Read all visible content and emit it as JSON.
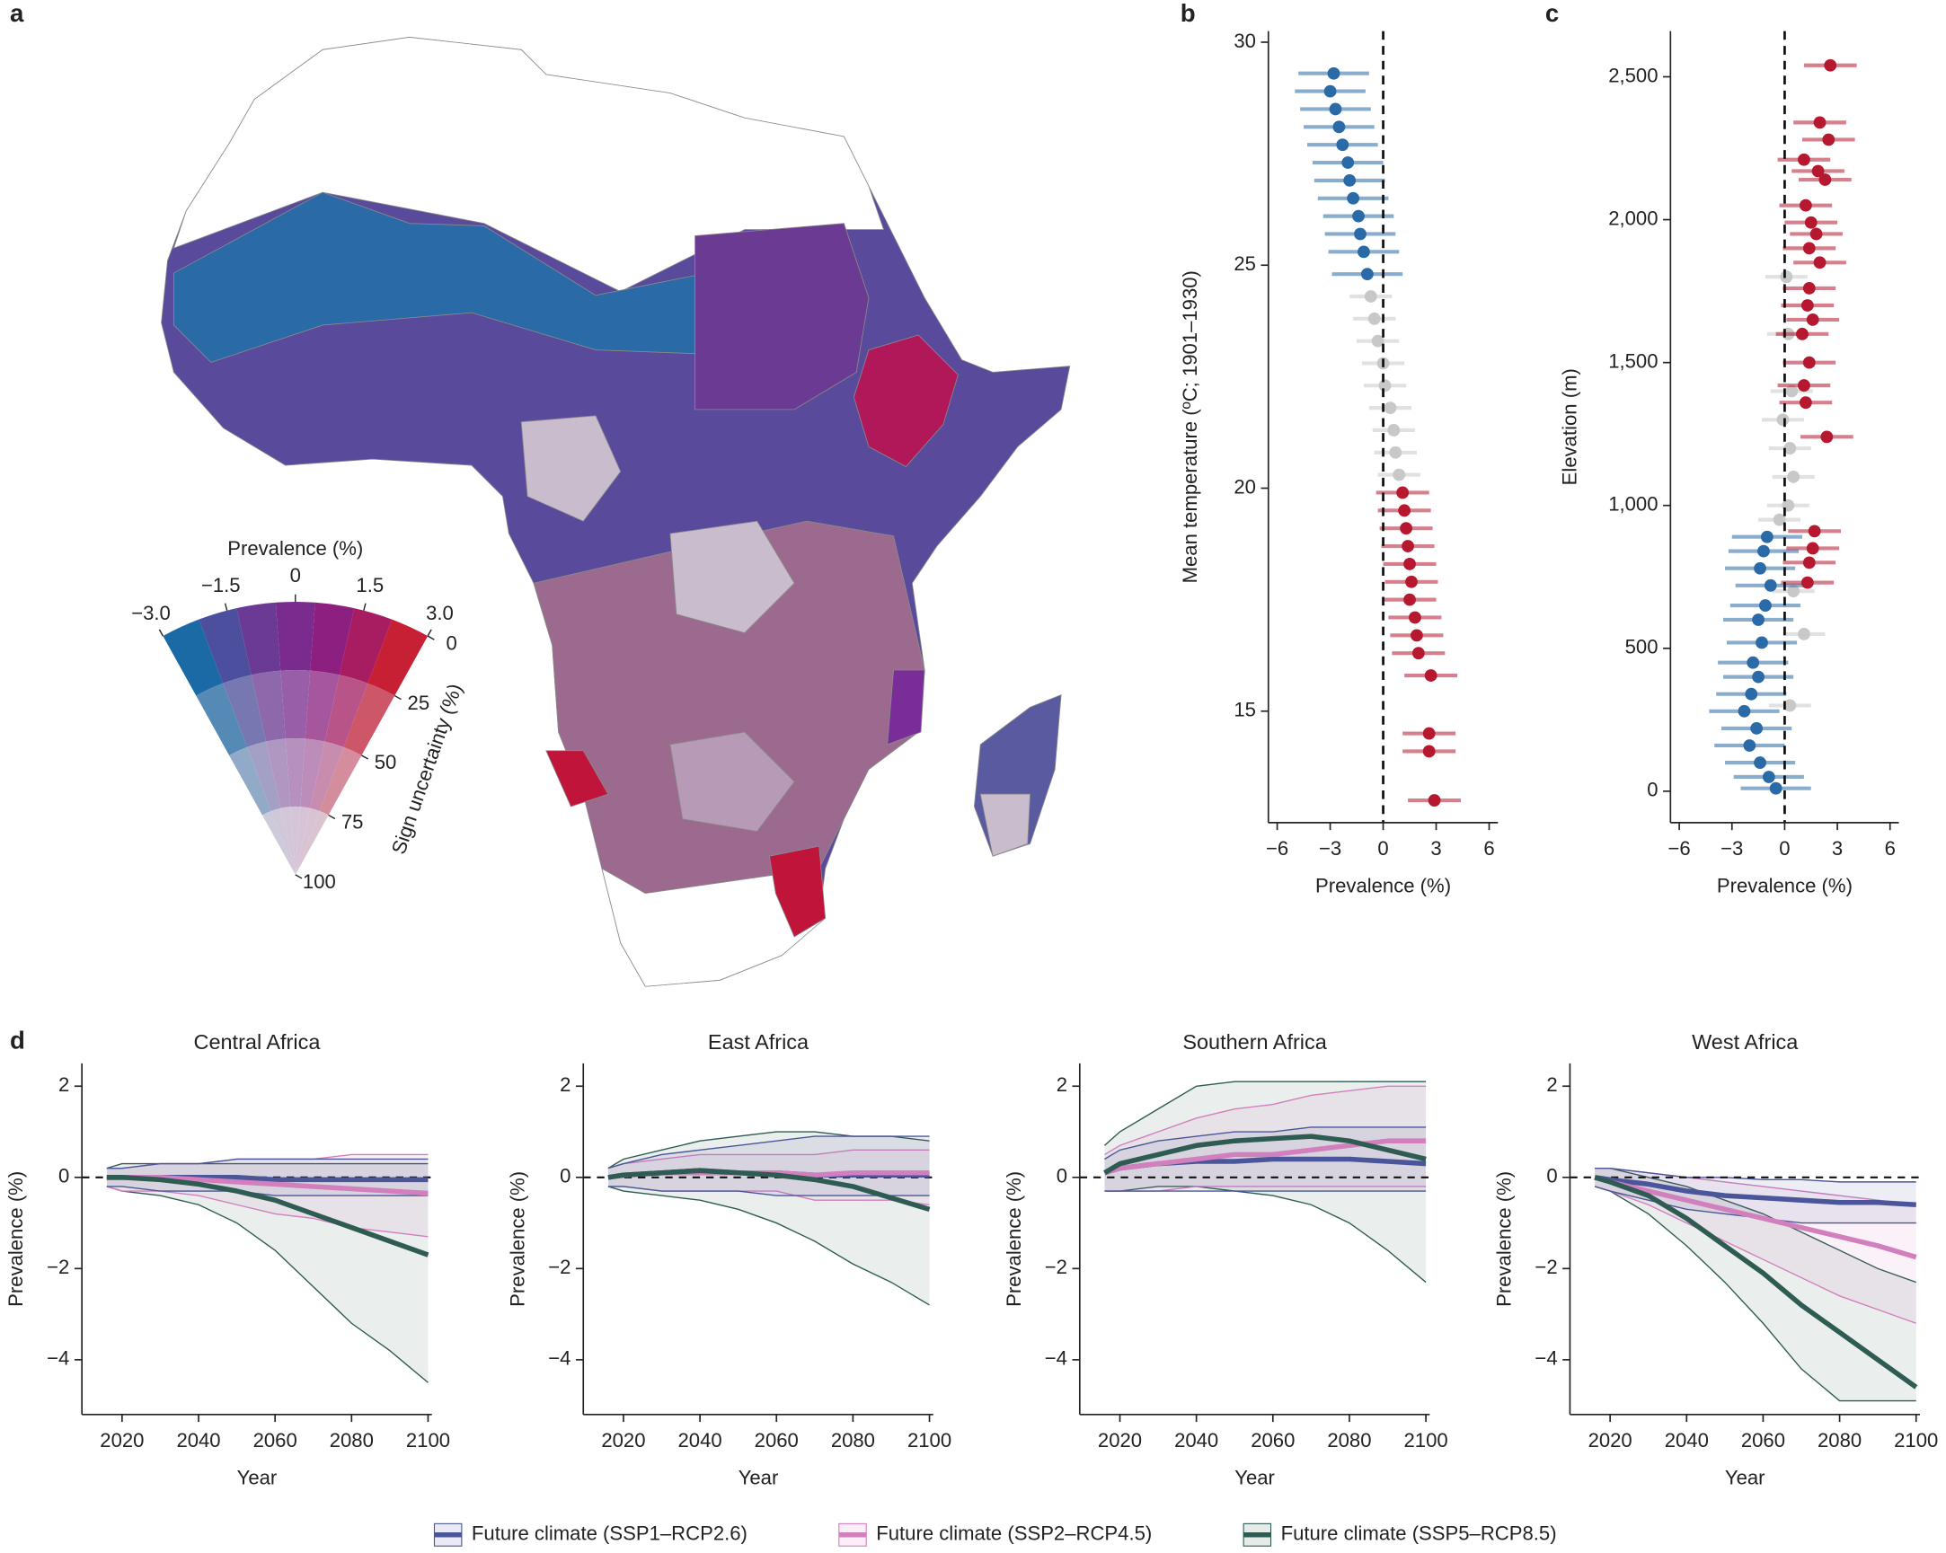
{
  "chart_data": [
    {
      "type": "map",
      "panel_label": "a",
      "legend_title": "Prevalence (%)",
      "prevalence_ticks": [
        {
          "value": -3,
          "label": "−3.0"
        },
        {
          "value": -1.5,
          "label": "−1.5"
        },
        0,
        1.5,
        {
          "value": 3,
          "label": "3.0"
        }
      ],
      "uncertainty_label": "Sign uncertainty (%)",
      "uncertainty_ticks": [
        0,
        25,
        50,
        75,
        100
      ]
    },
    {
      "type": "scatter",
      "panel_label": "b",
      "xlabel": "Prevalence (%)",
      "ylabel": "Mean temperature (ºC; 1901–1930)",
      "xlim": [
        -6.5,
        6.5
      ],
      "ylim": [
        12.5,
        30.25
      ],
      "xticks": [
        {
          "value": -6,
          "label": "−6"
        },
        {
          "value": -3,
          "label": "−3"
        },
        0,
        3,
        6
      ],
      "yticks": [
        15,
        20,
        25,
        30
      ],
      "vline": 0,
      "series": [
        {
          "color": "#c8c8c8",
          "x": [
            -0.7,
            -0.5,
            -0.3,
            0,
            0.1,
            0.4,
            0.6,
            0.7,
            0.9
          ],
          "values": [
            24.3,
            23.8,
            23.3,
            22.8,
            22.3,
            21.8,
            21.3,
            20.8,
            20.3
          ],
          "errors": [
            1.2,
            1.2,
            1.2,
            1.2,
            1.2,
            1.2,
            1.2,
            1.2,
            1.2
          ]
        },
        {
          "color": "#2a6aa6",
          "x": [
            -2.8,
            -3.0,
            -2.7,
            -2.5,
            -2.3,
            -2.0,
            -1.9,
            -1.7,
            -1.4,
            -1.3,
            -1.1,
            -0.9
          ],
          "values": [
            29.3,
            28.9,
            28.5,
            28.1,
            27.7,
            27.3,
            26.9,
            26.5,
            26.1,
            25.7,
            25.3,
            24.8
          ],
          "errors": [
            2,
            2,
            2,
            2,
            2,
            2,
            2,
            2,
            2,
            2,
            2,
            2
          ]
        },
        {
          "color": "#b5182f",
          "x": [
            1.1,
            1.2,
            1.3,
            1.4,
            1.5,
            1.6,
            1.5,
            1.8,
            1.9,
            2.0,
            2.7,
            2.6,
            2.6,
            2.9
          ],
          "values": [
            19.9,
            19.5,
            19.1,
            18.7,
            18.3,
            17.9,
            17.5,
            17.1,
            16.7,
            16.3,
            15.8,
            14.5,
            14.1,
            13.0
          ],
          "errors": [
            1.5,
            1.5,
            1.5,
            1.5,
            1.5,
            1.5,
            1.5,
            1.5,
            1.5,
            1.5,
            1.5,
            1.5,
            1.5,
            1.5
          ]
        }
      ]
    },
    {
      "type": "scatter",
      "panel_label": "c",
      "xlabel": "Prevalence (%)",
      "ylabel": "Elevation (m)",
      "xlim": [
        -6.5,
        6.5
      ],
      "ylim": [
        -110,
        2660
      ],
      "xticks": [
        {
          "value": -6,
          "label": "−6"
        },
        {
          "value": -3,
          "label": "−3"
        },
        0,
        3,
        6
      ],
      "yticks": [
        0,
        500,
        {
          "value": 1000,
          "label": "1,000"
        },
        {
          "value": 1500,
          "label": "1,500"
        },
        {
          "value": 2000,
          "label": "2,000"
        },
        {
          "value": 2500,
          "label": "2,500"
        }
      ],
      "vline": 0,
      "series": [
        {
          "color": "#c8c8c8",
          "x": [
            0.1,
            0.2,
            0.4,
            -0.1,
            0.3,
            0.5,
            0.2,
            -0.3,
            0.5,
            1.1,
            0.3
          ],
          "values": [
            1800,
            1600,
            1400,
            1300,
            1200,
            1100,
            1000,
            950,
            700,
            550,
            300
          ],
          "errors": [
            1.2,
            1.2,
            1.2,
            1.2,
            1.2,
            1.2,
            1.2,
            1.2,
            1.2,
            1.2,
            1.2
          ]
        },
        {
          "color": "#2a6aa6",
          "x": [
            -1.0,
            -1.2,
            -1.4,
            -0.8,
            -1.1,
            -1.5,
            -1.3,
            -1.8,
            -1.5,
            -1.9,
            -2.3,
            -1.6,
            -2.0,
            -1.4,
            -0.9,
            -0.5
          ],
          "values": [
            890,
            840,
            780,
            720,
            650,
            600,
            520,
            450,
            400,
            340,
            280,
            220,
            160,
            100,
            50,
            10
          ],
          "errors": [
            2,
            2,
            2,
            2,
            2,
            2,
            2,
            2,
            2,
            2,
            2,
            2,
            2,
            2,
            2,
            2
          ]
        },
        {
          "color": "#b5182f",
          "x": [
            2.6,
            2.0,
            2.5,
            1.1,
            1.9,
            2.3,
            1.2,
            1.5,
            1.8,
            1.4,
            2.0,
            1.4,
            1.3,
            1.6,
            1.0,
            1.4,
            1.1,
            1.2,
            2.4,
            1.7,
            1.6,
            1.4,
            1.3
          ],
          "values": [
            2540,
            2340,
            2280,
            2210,
            2170,
            2140,
            2050,
            1990,
            1950,
            1900,
            1850,
            1760,
            1700,
            1650,
            1600,
            1500,
            1420,
            1360,
            1240,
            910,
            850,
            800,
            730
          ],
          "errors": [
            1.5,
            1.5,
            1.5,
            1.5,
            1.5,
            1.5,
            1.5,
            1.5,
            1.5,
            1.5,
            1.5,
            1.5,
            1.5,
            1.5,
            1.5,
            1.5,
            1.5,
            1.5,
            1.5,
            1.5,
            1.5,
            1.5,
            1.5
          ]
        }
      ]
    },
    {
      "type": "line",
      "panel_label": "d",
      "title": "Central Africa",
      "xlabel": "Year",
      "ylabel": "Prevalence (%)",
      "xlim": [
        2009.5,
        2101
      ],
      "ylim": [
        -5.2,
        2.5
      ],
      "xticks": [
        2020,
        2040,
        2060,
        2080,
        2100
      ],
      "yticks": [
        {
          "value": -4,
          "label": "−4"
        },
        {
          "value": -2,
          "label": "−2"
        },
        0,
        2
      ],
      "hline": 0,
      "x": [
        2016,
        2020,
        2030,
        2040,
        2050,
        2060,
        2070,
        2080,
        2090,
        2100
      ],
      "series": [
        {
          "name": "Future climate (SSP1–RCP2.6)",
          "color": "#4a5699",
          "values": [
            0,
            0,
            0,
            0,
            0,
            -0.05,
            -0.05,
            -0.05,
            -0.05,
            -0.05
          ],
          "lower": [
            -0.2,
            -0.2,
            -0.3,
            -0.3,
            -0.3,
            -0.4,
            -0.4,
            -0.4,
            -0.4,
            -0.4
          ],
          "upper": [
            0.2,
            0.2,
            0.3,
            0.3,
            0.4,
            0.4,
            0.4,
            0.4,
            0.4,
            0.4
          ]
        },
        {
          "name": "Future climate (SSP2–RCP4.5)",
          "color": "#d27fbd",
          "values": [
            0,
            0,
            0,
            -0.05,
            -0.1,
            -0.15,
            -0.2,
            -0.25,
            -0.3,
            -0.35
          ],
          "lower": [
            -0.2,
            -0.3,
            -0.3,
            -0.4,
            -0.6,
            -0.8,
            -0.9,
            -1.1,
            -1.2,
            -1.3
          ],
          "upper": [
            0.2,
            0.2,
            0.3,
            0.3,
            0.4,
            0.4,
            0.4,
            0.5,
            0.5,
            0.5
          ]
        },
        {
          "name": "Future climate (SSP5–RCP8.5)",
          "color": "#2e5b52",
          "values": [
            0,
            0,
            -0.05,
            -0.15,
            -0.3,
            -0.5,
            -0.8,
            -1.1,
            -1.4,
            -1.7
          ],
          "lower": [
            -0.2,
            -0.3,
            -0.4,
            -0.6,
            -1.0,
            -1.6,
            -2.4,
            -3.2,
            -3.8,
            -4.5
          ],
          "upper": [
            0.2,
            0.3,
            0.3,
            0.3,
            0.3,
            0.3,
            0.3,
            0.3,
            0.3,
            0.3
          ]
        }
      ]
    },
    {
      "type": "line",
      "title": "East Africa",
      "xlabel": "Year",
      "ylabel": "Prevalence (%)",
      "xlim": [
        2009.5,
        2101
      ],
      "ylim": [
        -5.2,
        2.5
      ],
      "xticks": [
        2020,
        2040,
        2060,
        2080,
        2100
      ],
      "yticks": [
        {
          "value": -4,
          "label": "−4"
        },
        {
          "value": -2,
          "label": "−2"
        },
        0,
        2
      ],
      "hline": 0,
      "x": [
        2016,
        2020,
        2030,
        2040,
        2050,
        2060,
        2070,
        2080,
        2090,
        2100
      ],
      "series": [
        {
          "color": "#4a5699",
          "values": [
            0,
            0.05,
            0.1,
            0.15,
            0.1,
            0.1,
            0.05,
            0.05,
            0.05,
            0.05
          ],
          "lower": [
            -0.2,
            -0.2,
            -0.3,
            -0.3,
            -0.3,
            -0.4,
            -0.4,
            -0.4,
            -0.4,
            -0.4
          ],
          "upper": [
            0.2,
            0.3,
            0.5,
            0.6,
            0.7,
            0.8,
            0.9,
            0.9,
            0.9,
            0.9
          ]
        },
        {
          "color": "#d27fbd",
          "values": [
            0,
            0.05,
            0.1,
            0.1,
            0.1,
            0.1,
            0.05,
            0.1,
            0.1,
            0.1
          ],
          "lower": [
            -0.2,
            -0.2,
            -0.3,
            -0.3,
            -0.3,
            -0.3,
            -0.5,
            -0.5,
            -0.5,
            -0.6
          ],
          "upper": [
            0.2,
            0.3,
            0.4,
            0.5,
            0.5,
            0.5,
            0.5,
            0.6,
            0.6,
            0.6
          ]
        },
        {
          "color": "#2e5b52",
          "values": [
            0,
            0.05,
            0.1,
            0.15,
            0.1,
            0.05,
            -0.05,
            -0.2,
            -0.45,
            -0.7
          ],
          "lower": [
            -0.2,
            -0.3,
            -0.4,
            -0.5,
            -0.7,
            -1.0,
            -1.4,
            -1.9,
            -2.3,
            -2.8
          ],
          "upper": [
            0.2,
            0.4,
            0.6,
            0.8,
            0.9,
            1.0,
            1.0,
            0.9,
            0.9,
            0.8
          ]
        }
      ]
    },
    {
      "type": "line",
      "title": "Southern Africa",
      "xlabel": "Year",
      "ylabel": "Prevalence (%)",
      "xlim": [
        2009.5,
        2101
      ],
      "ylim": [
        -5.2,
        2.5
      ],
      "xticks": [
        2020,
        2040,
        2060,
        2080,
        2100
      ],
      "yticks": [
        {
          "value": -4,
          "label": "−4"
        },
        {
          "value": -2,
          "label": "−2"
        },
        0,
        2
      ],
      "hline": 0,
      "x": [
        2016,
        2020,
        2030,
        2040,
        2050,
        2060,
        2070,
        2080,
        2090,
        2100
      ],
      "series": [
        {
          "color": "#4a5699",
          "values": [
            0.1,
            0.2,
            0.3,
            0.35,
            0.35,
            0.4,
            0.4,
            0.4,
            0.35,
            0.3
          ],
          "lower": [
            -0.3,
            -0.3,
            -0.3,
            -0.3,
            -0.3,
            -0.3,
            -0.3,
            -0.3,
            -0.3,
            -0.3
          ],
          "upper": [
            0.4,
            0.6,
            0.8,
            0.9,
            1.0,
            1.0,
            1.1,
            1.1,
            1.1,
            1.1
          ]
        },
        {
          "color": "#d27fbd",
          "values": [
            0.1,
            0.2,
            0.3,
            0.4,
            0.5,
            0.5,
            0.6,
            0.7,
            0.8,
            0.8
          ],
          "lower": [
            -0.3,
            -0.3,
            -0.3,
            -0.2,
            -0.2,
            -0.2,
            -0.2,
            -0.2,
            -0.2,
            -0.2
          ],
          "upper": [
            0.5,
            0.7,
            1.0,
            1.3,
            1.5,
            1.6,
            1.8,
            1.9,
            2.0,
            2.0
          ]
        },
        {
          "color": "#2e5b52",
          "values": [
            0.1,
            0.3,
            0.5,
            0.7,
            0.8,
            0.85,
            0.9,
            0.8,
            0.6,
            0.4
          ],
          "lower": [
            -0.3,
            -0.3,
            -0.2,
            -0.2,
            -0.3,
            -0.4,
            -0.6,
            -1.0,
            -1.6,
            -2.3
          ],
          "upper": [
            0.7,
            1.0,
            1.5,
            2.0,
            2.1,
            2.1,
            2.1,
            2.1,
            2.1,
            2.1
          ]
        }
      ]
    },
    {
      "type": "line",
      "title": "West Africa",
      "xlabel": "Year",
      "ylabel": "Prevalence (%)",
      "xlim": [
        2009.5,
        2101
      ],
      "ylim": [
        -5.2,
        2.5
      ],
      "xticks": [
        2020,
        2040,
        2060,
        2080,
        2100
      ],
      "yticks": [
        {
          "value": -4,
          "label": "−4"
        },
        {
          "value": -2,
          "label": "−2"
        },
        0,
        2
      ],
      "hline": 0,
      "x": [
        2016,
        2020,
        2030,
        2040,
        2050,
        2060,
        2070,
        2080,
        2090,
        2100
      ],
      "series": [
        {
          "color": "#4a5699",
          "values": [
            0,
            -0.05,
            -0.15,
            -0.3,
            -0.4,
            -0.45,
            -0.5,
            -0.55,
            -0.55,
            -0.6
          ],
          "lower": [
            -0.2,
            -0.3,
            -0.5,
            -0.7,
            -0.8,
            -0.9,
            -1.0,
            -1.0,
            -1.0,
            -1.0
          ],
          "upper": [
            0.2,
            0.2,
            0.1,
            0.0,
            0.0,
            -0.05,
            -0.05,
            -0.1,
            -0.1,
            -0.1
          ]
        },
        {
          "color": "#d27fbd",
          "values": [
            0,
            -0.1,
            -0.3,
            -0.5,
            -0.7,
            -0.9,
            -1.1,
            -1.3,
            -1.5,
            -1.75
          ],
          "lower": [
            -0.2,
            -0.3,
            -0.6,
            -1.0,
            -1.4,
            -1.8,
            -2.2,
            -2.6,
            -2.9,
            -3.2
          ],
          "upper": [
            0.2,
            0.2,
            0.1,
            0.0,
            -0.1,
            -0.2,
            -0.3,
            -0.4,
            -0.5,
            -0.6
          ]
        },
        {
          "color": "#2e5b52",
          "values": [
            0,
            -0.1,
            -0.4,
            -0.9,
            -1.5,
            -2.1,
            -2.8,
            -3.4,
            -4.0,
            -4.6
          ],
          "lower": [
            -0.2,
            -0.3,
            -0.8,
            -1.5,
            -2.3,
            -3.2,
            -4.2,
            -4.9,
            -4.9,
            -4.9
          ],
          "upper": [
            0.2,
            0.2,
            0.0,
            -0.2,
            -0.5,
            -0.8,
            -1.2,
            -1.6,
            -2.0,
            -2.3
          ]
        }
      ]
    }
  ]
}
